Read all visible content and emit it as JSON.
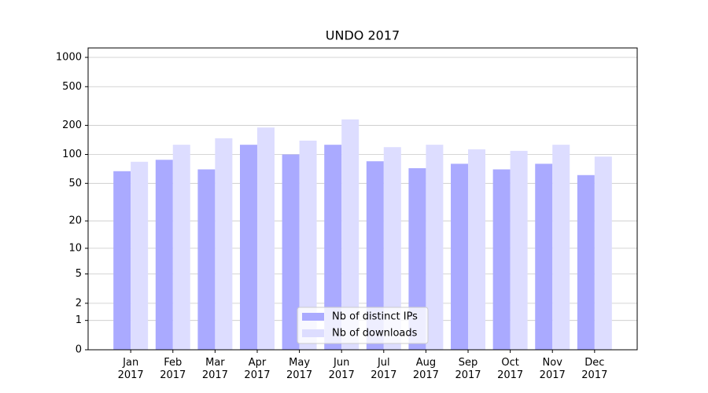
{
  "chart_data": {
    "type": "bar",
    "title": "UNDO 2017",
    "categories": [
      "Jan\n2017",
      "Feb\n2017",
      "Mar\n2017",
      "Apr\n2017",
      "May\n2017",
      "Jun\n2017",
      "Jul\n2017",
      "Aug\n2017",
      "Sep\n2017",
      "Oct\n2017",
      "Nov\n2017",
      "Dec\n2017"
    ],
    "series": [
      {
        "name": "Nb of distinct IPs",
        "color": "#aaaaff",
        "values": [
          67,
          88,
          70,
          126,
          100,
          126,
          85,
          72,
          80,
          70,
          80,
          61
        ]
      },
      {
        "name": "Nb of downloads",
        "color": "#ddddff",
        "values": [
          84,
          126,
          147,
          190,
          139,
          230,
          119,
          126,
          113,
          109,
          126,
          95
        ]
      }
    ],
    "yscale": "log1p",
    "ylim": [
      0,
      1250
    ],
    "yticks": [
      0,
      1,
      2,
      5,
      10,
      20,
      50,
      100,
      200,
      500,
      1000
    ],
    "grid": true,
    "legend": "lower center"
  }
}
